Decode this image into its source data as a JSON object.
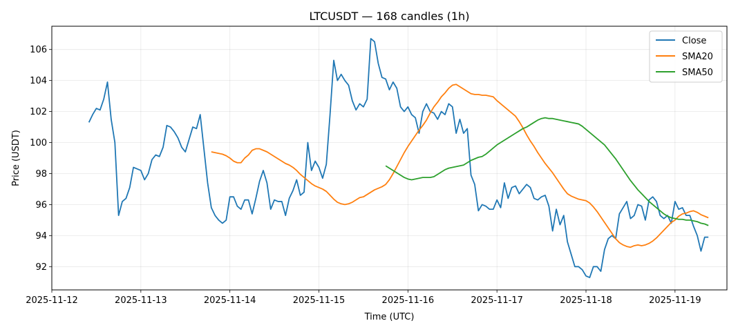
{
  "chart_data": {
    "type": "line",
    "title": "LTCUSDT — 168 candles (1h)",
    "xlabel": "Time (UTC)",
    "ylabel": "Price (USDT)",
    "xlim": [
      "2025-11-12 00:00",
      "2025-11-19 14:00"
    ],
    "ylim": [
      90.5,
      107.5
    ],
    "x_ticks": [
      "2025-11-12",
      "2025-11-13",
      "2025-11-14",
      "2025-11-15",
      "2025-11-16",
      "2025-11-17",
      "2025-11-18",
      "2025-11-19"
    ],
    "y_ticks": [
      92,
      94,
      96,
      98,
      100,
      102,
      104,
      106
    ],
    "grid": true,
    "legend_position": "top-right",
    "x_start": "2025-11-12 10:00",
    "x_step_hours": 1,
    "series": [
      {
        "name": "Close",
        "color": "#1f77b4",
        "values": [
          101.3,
          101.8,
          102.2,
          102.1,
          102.8,
          103.9,
          101.5,
          100.0,
          95.3,
          96.2,
          96.4,
          97.1,
          98.4,
          98.3,
          98.2,
          97.6,
          98.0,
          98.9,
          99.2,
          99.1,
          99.7,
          101.1,
          101.0,
          100.7,
          100.3,
          99.7,
          99.4,
          100.2,
          101.0,
          100.9,
          101.8,
          99.6,
          97.4,
          95.8,
          95.3,
          95.0,
          94.8,
          95.0,
          96.5,
          96.5,
          95.9,
          95.7,
          96.3,
          96.3,
          95.4,
          96.4,
          97.5,
          98.2,
          97.4,
          95.7,
          96.3,
          96.2,
          96.2,
          95.3,
          96.4,
          96.9,
          97.6,
          96.6,
          96.8,
          100.0,
          98.2,
          98.8,
          98.4,
          97.7,
          98.6,
          101.8,
          105.3,
          104.0,
          104.4,
          104.0,
          103.7,
          102.7,
          102.1,
          102.5,
          102.3,
          102.8,
          106.7,
          106.5,
          105.1,
          104.2,
          104.1,
          103.4,
          103.9,
          103.5,
          102.3,
          102.0,
          102.3,
          101.8,
          101.6,
          100.6,
          102.0,
          102.5,
          102.0,
          101.9,
          101.5,
          102.0,
          101.8,
          102.5,
          102.3,
          100.6,
          101.5,
          100.6,
          100.9,
          97.9,
          97.3,
          95.6,
          96.0,
          95.9,
          95.7,
          95.7,
          96.3,
          95.8,
          97.4,
          96.4,
          97.1,
          97.2,
          96.7,
          97.0,
          97.3,
          97.1,
          96.4,
          96.3,
          96.5,
          96.6,
          95.9,
          94.3,
          95.7,
          94.7,
          95.3,
          93.6,
          92.8,
          92.0,
          92.0,
          91.8,
          91.4,
          91.3,
          92.0,
          92.0,
          91.7,
          93.1,
          93.8,
          94.0,
          93.8,
          95.4,
          95.8,
          96.2,
          95.1,
          95.3,
          96.0,
          95.9,
          95.0,
          96.3,
          96.5,
          96.2,
          95.3,
          95.1,
          95.3,
          94.8,
          96.2,
          95.7,
          95.8,
          95.3,
          95.3,
          94.6,
          94.0,
          93.0,
          93.9,
          93.9
        ]
      },
      {
        "name": "SMA20",
        "color": "#ff7f0e",
        "values": [
          99.4,
          99.35,
          99.3,
          99.25,
          99.15,
          99.0,
          98.8,
          98.7,
          98.7,
          99.0,
          99.2,
          99.5,
          99.6,
          99.6,
          99.5,
          99.4,
          99.25,
          99.1,
          98.95,
          98.8,
          98.65,
          98.55,
          98.4,
          98.2,
          97.95,
          97.75,
          97.55,
          97.35,
          97.2,
          97.1,
          97.0,
          96.85,
          96.6,
          96.35,
          96.15,
          96.05,
          96.0,
          96.05,
          96.15,
          96.3,
          96.45,
          96.5,
          96.65,
          96.8,
          96.95,
          97.05,
          97.15,
          97.3,
          97.6,
          98.0,
          98.45,
          98.9,
          99.35,
          99.75,
          100.1,
          100.45,
          100.8,
          101.1,
          101.45,
          101.9,
          102.3,
          102.6,
          102.95,
          103.2,
          103.5,
          103.7,
          103.75,
          103.6,
          103.45,
          103.3,
          103.15,
          103.1,
          103.1,
          103.05,
          103.05,
          103.0,
          102.95,
          102.7,
          102.5,
          102.3,
          102.1,
          101.9,
          101.7,
          101.35,
          100.95,
          100.5,
          100.1,
          99.75,
          99.35,
          99.0,
          98.65,
          98.35,
          98.05,
          97.7,
          97.35,
          97.0,
          96.7,
          96.55,
          96.45,
          96.35,
          96.3,
          96.25,
          96.1,
          95.85,
          95.55,
          95.2,
          94.85,
          94.5,
          94.15,
          93.8,
          93.55,
          93.4,
          93.3,
          93.25,
          93.35,
          93.4,
          93.35,
          93.4,
          93.5,
          93.65,
          93.85,
          94.1,
          94.35,
          94.6,
          94.85,
          95.0,
          95.25,
          95.4,
          95.45,
          95.55,
          95.6,
          95.5,
          95.35,
          95.25,
          95.15
        ]
      },
      {
        "name": "SMA50",
        "color": "#2ca02c",
        "values": [
          98.5,
          98.35,
          98.2,
          98.05,
          97.9,
          97.75,
          97.65,
          97.6,
          97.65,
          97.7,
          97.75,
          97.75,
          97.75,
          97.8,
          97.95,
          98.1,
          98.25,
          98.35,
          98.4,
          98.45,
          98.5,
          98.55,
          98.7,
          98.85,
          98.95,
          99.05,
          99.1,
          99.25,
          99.45,
          99.65,
          99.85,
          100.0,
          100.15,
          100.3,
          100.45,
          100.6,
          100.75,
          100.9,
          101.0,
          101.15,
          101.3,
          101.45,
          101.55,
          101.6,
          101.55,
          101.55,
          101.5,
          101.45,
          101.4,
          101.35,
          101.3,
          101.25,
          101.2,
          101.05,
          100.85,
          100.65,
          100.45,
          100.25,
          100.05,
          99.85,
          99.55,
          99.25,
          98.95,
          98.6,
          98.25,
          97.9,
          97.55,
          97.25,
          96.95,
          96.7,
          96.45,
          96.2,
          96.0,
          95.8,
          95.6,
          95.4,
          95.25,
          95.15,
          95.1,
          95.05,
          95.05,
          95.0,
          95.0,
          94.95,
          94.9,
          94.8,
          94.75,
          94.65
        ]
      }
    ]
  }
}
